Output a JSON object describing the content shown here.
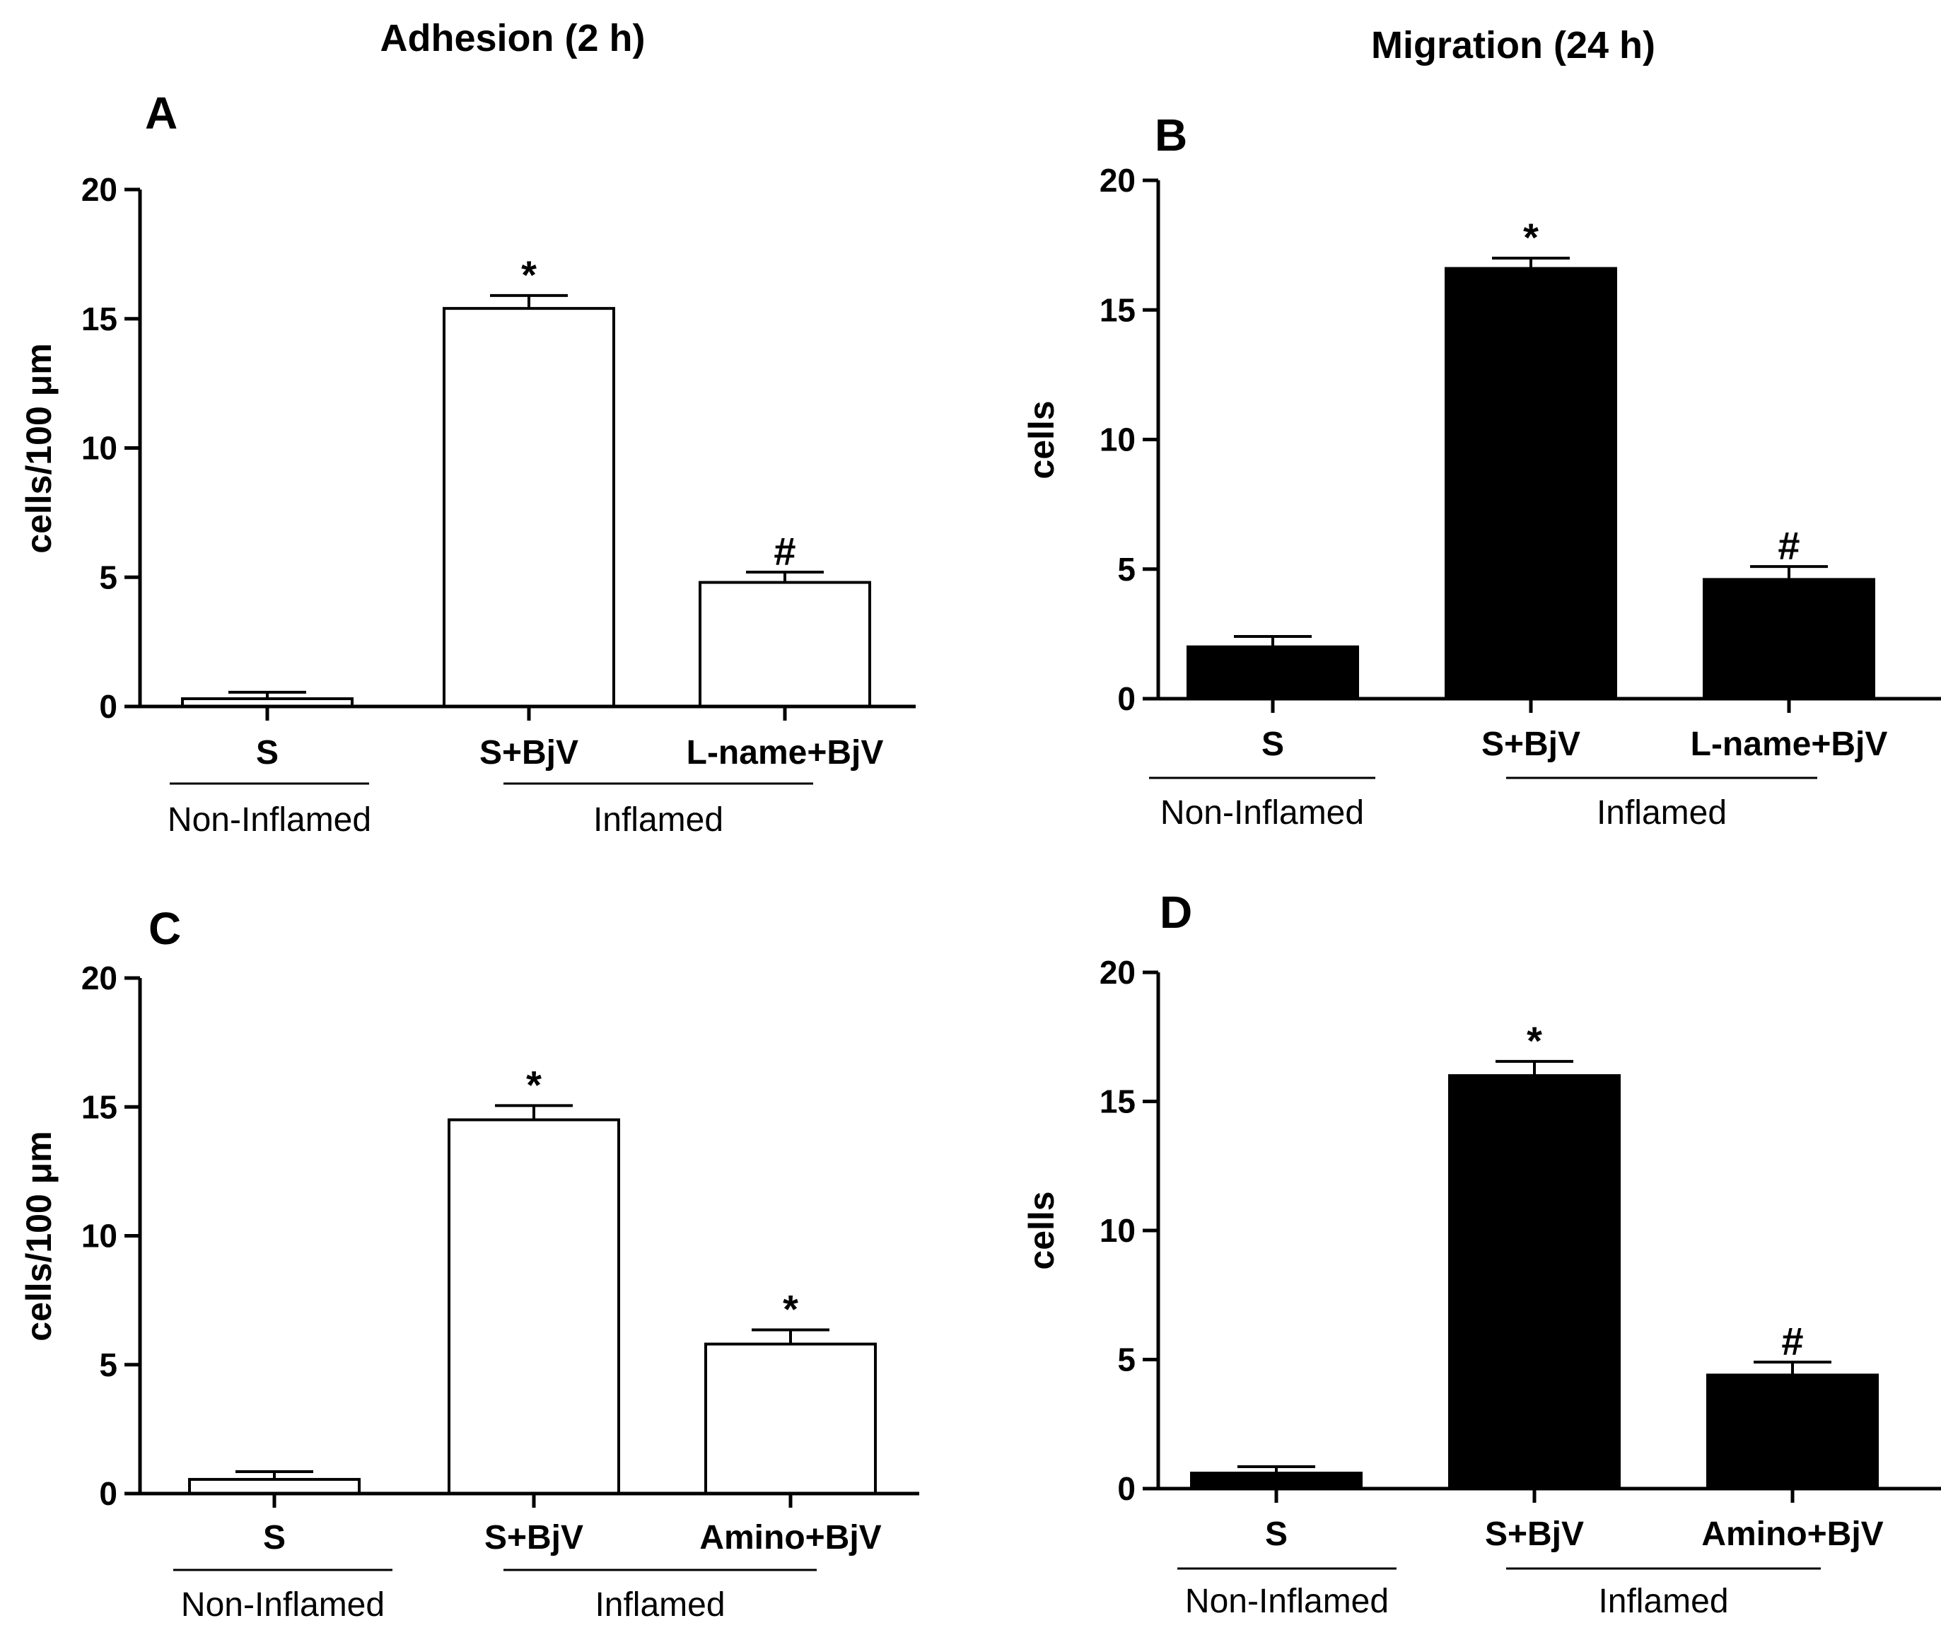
{
  "figure": {
    "column_titles": [
      "Adhesion (2 h)",
      "Migration (24 h)"
    ]
  },
  "chart_data": [
    {
      "panel": "A",
      "type": "bar",
      "categories": [
        "S",
        "S+BjV",
        "L-name+BjV"
      ],
      "values": [
        0.3,
        15.4,
        4.8
      ],
      "errors": [
        0.25,
        0.5,
        0.4
      ],
      "significance": [
        "",
        "*",
        "#"
      ],
      "bar_fill": "#ffffff",
      "ylabel": "cells/100 μm",
      "ylim": [
        0,
        20
      ],
      "yticks": [
        0,
        5,
        10,
        15,
        20
      ],
      "groups": [
        {
          "label": "Non-Inflamed",
          "categories": [
            "S"
          ]
        },
        {
          "label": "Inflamed",
          "categories": [
            "S+BjV",
            "L-name+BjV"
          ]
        }
      ]
    },
    {
      "panel": "B",
      "type": "bar",
      "categories": [
        "S",
        "S+BjV",
        "L-name+BjV"
      ],
      "values": [
        2.0,
        16.6,
        4.6
      ],
      "errors": [
        0.4,
        0.4,
        0.5
      ],
      "significance": [
        "",
        "*",
        "#"
      ],
      "bar_fill": "#000000",
      "ylabel": "cells",
      "ylim": [
        0,
        20
      ],
      "yticks": [
        0,
        5,
        10,
        15,
        20
      ],
      "groups": [
        {
          "label": "Non-Inflamed",
          "categories": [
            "S"
          ]
        },
        {
          "label": "Inflamed",
          "categories": [
            "S+BjV",
            "L-name+BjV"
          ]
        }
      ]
    },
    {
      "panel": "C",
      "type": "bar",
      "categories": [
        "S",
        "S+BjV",
        "Amino+BjV"
      ],
      "values": [
        0.55,
        14.5,
        5.8
      ],
      "errors": [
        0.3,
        0.55,
        0.55
      ],
      "significance": [
        "",
        "*",
        "*"
      ],
      "bar_fill": "#ffffff",
      "ylabel": "cells/100 μm",
      "ylim": [
        0,
        20
      ],
      "yticks": [
        0,
        5,
        10,
        15,
        20
      ],
      "groups": [
        {
          "label": "Non-Inflamed",
          "categories": [
            "S"
          ]
        },
        {
          "label": "Inflamed",
          "categories": [
            "S+BjV",
            "Amino+BjV"
          ]
        }
      ]
    },
    {
      "panel": "D",
      "type": "bar",
      "categories": [
        "S",
        "S+BjV",
        "Amino+BjV"
      ],
      "values": [
        0.6,
        16.0,
        4.4
      ],
      "errors": [
        0.25,
        0.55,
        0.5
      ],
      "significance": [
        "",
        "*",
        "#"
      ],
      "bar_fill": "#000000",
      "ylabel": "cells",
      "ylim": [
        0,
        20
      ],
      "yticks": [
        0,
        5,
        10,
        15,
        20
      ],
      "groups": [
        {
          "label": "Non-Inflamed",
          "categories": [
            "S"
          ]
        },
        {
          "label": "Inflamed",
          "categories": [
            "S+BjV",
            "Amino+BjV"
          ]
        }
      ]
    }
  ]
}
